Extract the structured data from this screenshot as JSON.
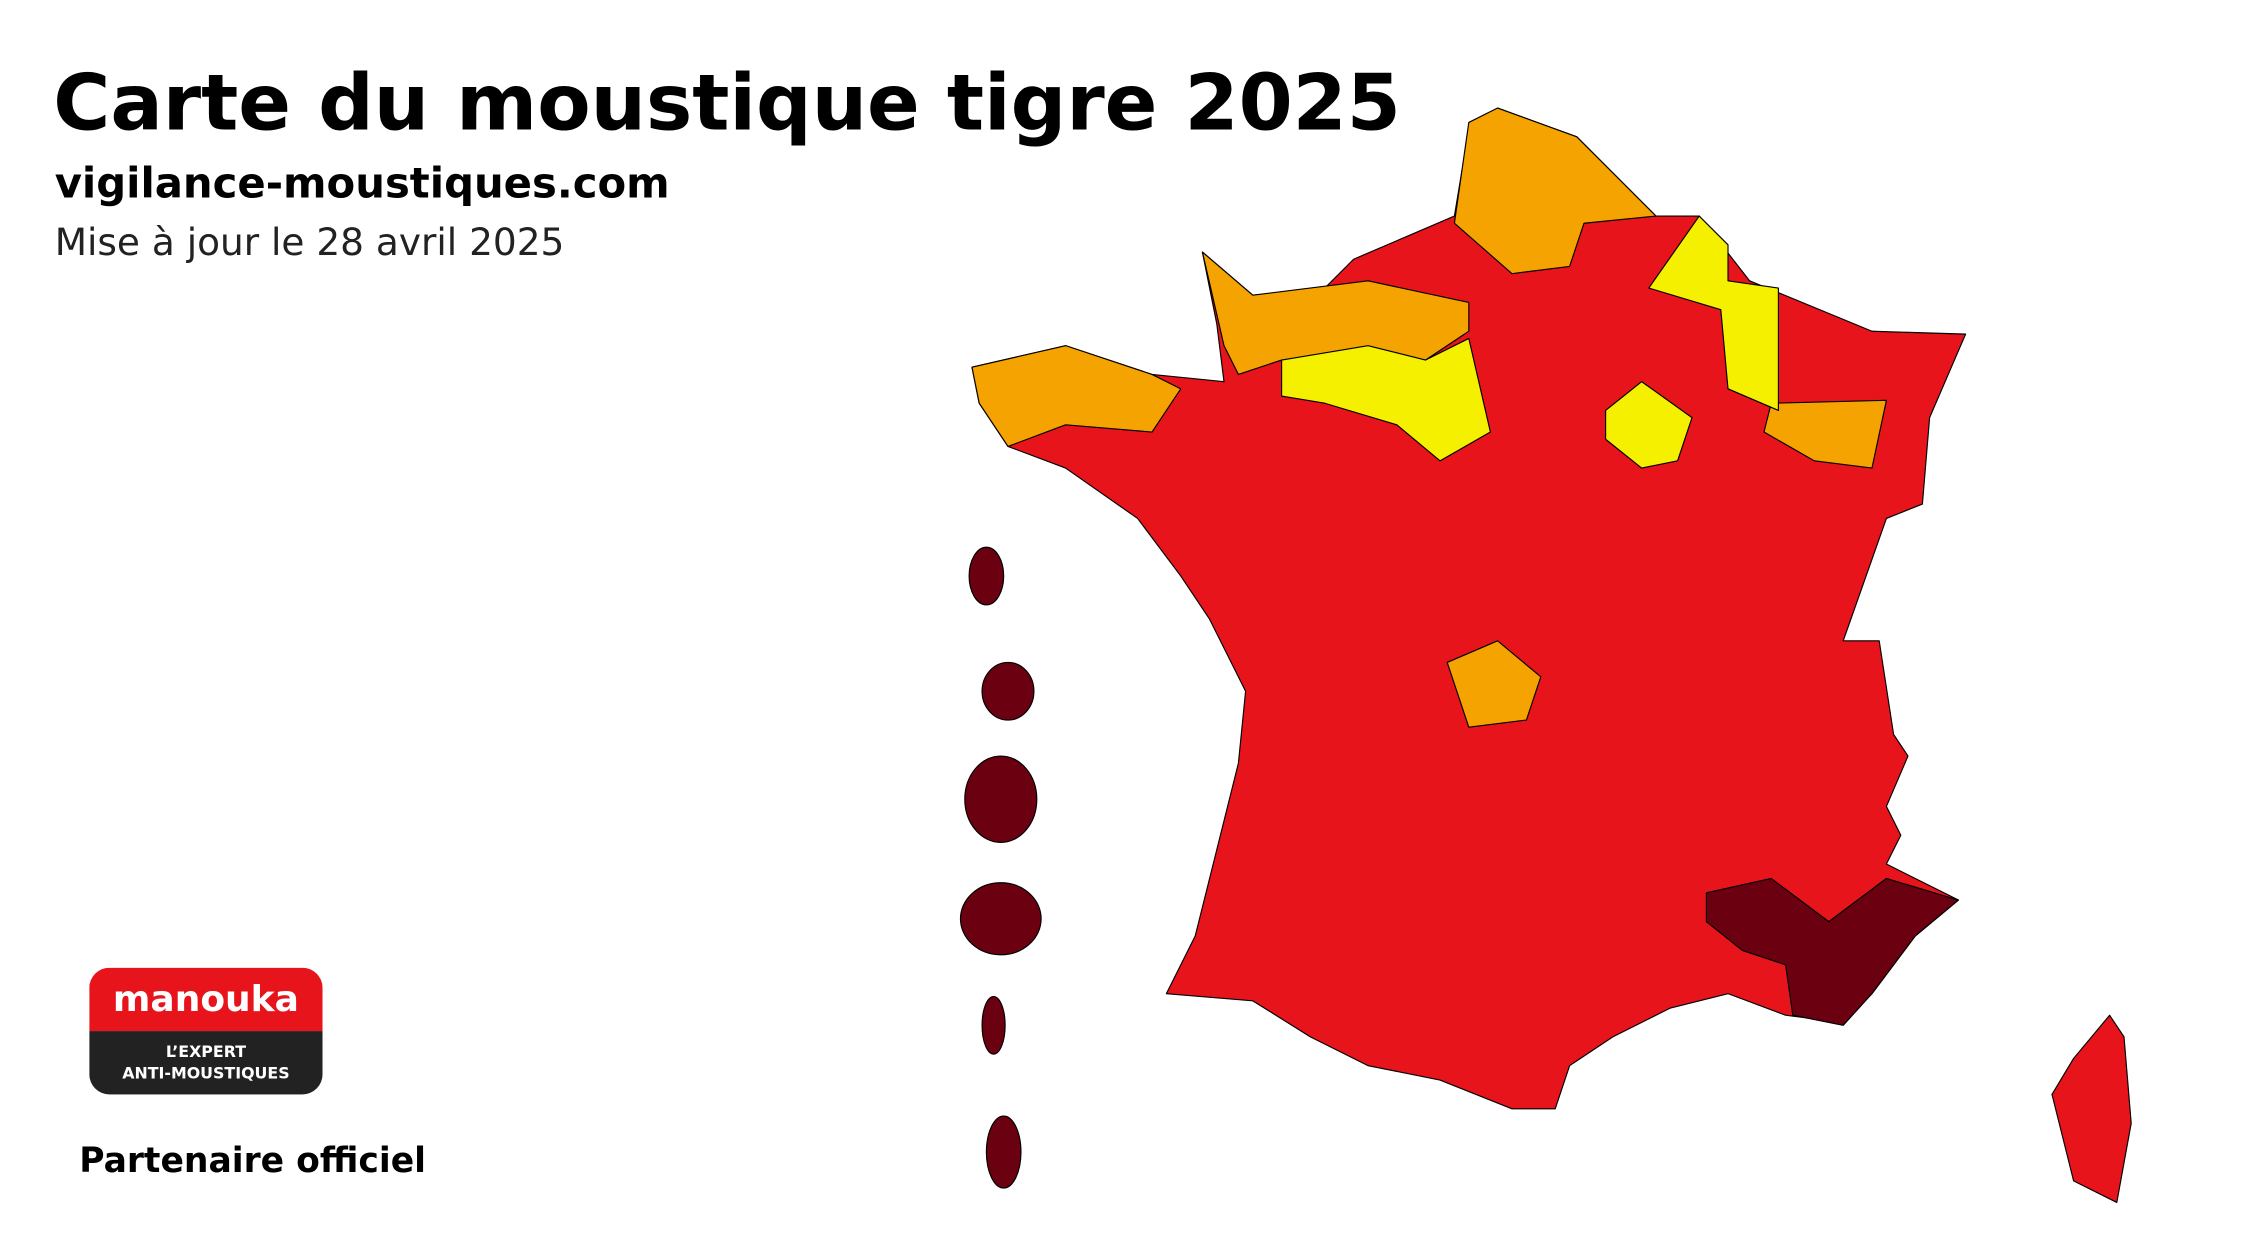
{
  "header": {
    "title": "Carte du moustique tigre 2025",
    "site": "vigilance-moustiques.com",
    "updated": "Mise à jour le 28 avril 2025"
  },
  "partner": {
    "brand": "manouka",
    "tagline_1": "L’EXPERT",
    "tagline_2": "ANTI-MOUSTIQUES",
    "caption": "Partenaire officiel"
  }
}
